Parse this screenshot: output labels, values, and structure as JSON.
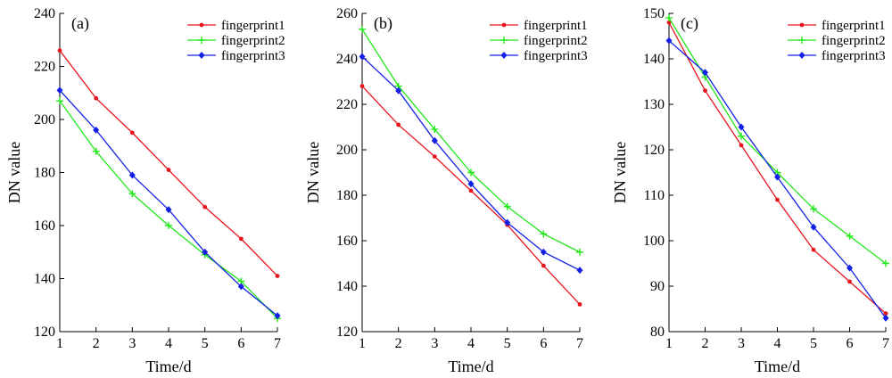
{
  "figure": {
    "panels": [
      {
        "label": "(a)"
      },
      {
        "label": "(b)"
      },
      {
        "label": "(c)"
      }
    ]
  },
  "chart_data": [
    {
      "type": "line",
      "panel_label": "(a)",
      "xlabel": "Time/d",
      "ylabel": "DN value",
      "x": [
        1,
        2,
        3,
        4,
        5,
        6,
        7
      ],
      "xlim": [
        1,
        7
      ],
      "ylim": [
        120,
        240
      ],
      "yticks": [
        120,
        140,
        160,
        180,
        200,
        220,
        240
      ],
      "grid": false,
      "legend_position": "top-right",
      "series": [
        {
          "name": "fingerprint1",
          "color": "#e8141c",
          "marker": "dot",
          "values": [
            226,
            208,
            195,
            181,
            167,
            155,
            141
          ]
        },
        {
          "name": "fingerprint2",
          "color": "#22e81a",
          "marker": "plus",
          "values": [
            207,
            188,
            172,
            160,
            149,
            139,
            125
          ]
        },
        {
          "name": "fingerprint3",
          "color": "#1320e6",
          "marker": "diamond",
          "values": [
            211,
            196,
            179,
            166,
            150,
            137,
            126
          ]
        }
      ]
    },
    {
      "type": "line",
      "panel_label": "(b)",
      "xlabel": "Time/d",
      "ylabel": "DN value",
      "x": [
        1,
        2,
        3,
        4,
        5,
        6,
        7
      ],
      "xlim": [
        1,
        7
      ],
      "ylim": [
        120,
        260
      ],
      "yticks": [
        120,
        140,
        160,
        180,
        200,
        220,
        240,
        260
      ],
      "grid": false,
      "legend_position": "top-right",
      "series": [
        {
          "name": "fingerprint1",
          "color": "#e8141c",
          "marker": "dot",
          "values": [
            228,
            211,
            197,
            182,
            167,
            149,
            132
          ]
        },
        {
          "name": "fingerprint2",
          "color": "#22e81a",
          "marker": "plus",
          "values": [
            253,
            228,
            209,
            190,
            175,
            163,
            155
          ]
        },
        {
          "name": "fingerprint3",
          "color": "#1320e6",
          "marker": "diamond",
          "values": [
            241,
            226,
            204,
            185,
            168,
            155,
            147
          ]
        }
      ]
    },
    {
      "type": "line",
      "panel_label": "(c)",
      "xlabel": "Time/d",
      "ylabel": "DN value",
      "x": [
        1,
        2,
        3,
        4,
        5,
        6,
        7
      ],
      "xlim": [
        1,
        7
      ],
      "ylim": [
        80,
        150
      ],
      "yticks": [
        80,
        90,
        100,
        110,
        120,
        130,
        140,
        150
      ],
      "grid": false,
      "legend_position": "top-right",
      "series": [
        {
          "name": "fingerprint1",
          "color": "#e8141c",
          "marker": "dot",
          "values": [
            148,
            133,
            121,
            109,
            98,
            91,
            84
          ]
        },
        {
          "name": "fingerprint2",
          "color": "#22e81a",
          "marker": "plus",
          "values": [
            149,
            136,
            123,
            115,
            107,
            101,
            95
          ]
        },
        {
          "name": "fingerprint3",
          "color": "#1320e6",
          "marker": "diamond",
          "values": [
            144,
            137,
            125,
            114,
            103,
            94,
            83
          ]
        }
      ]
    }
  ]
}
